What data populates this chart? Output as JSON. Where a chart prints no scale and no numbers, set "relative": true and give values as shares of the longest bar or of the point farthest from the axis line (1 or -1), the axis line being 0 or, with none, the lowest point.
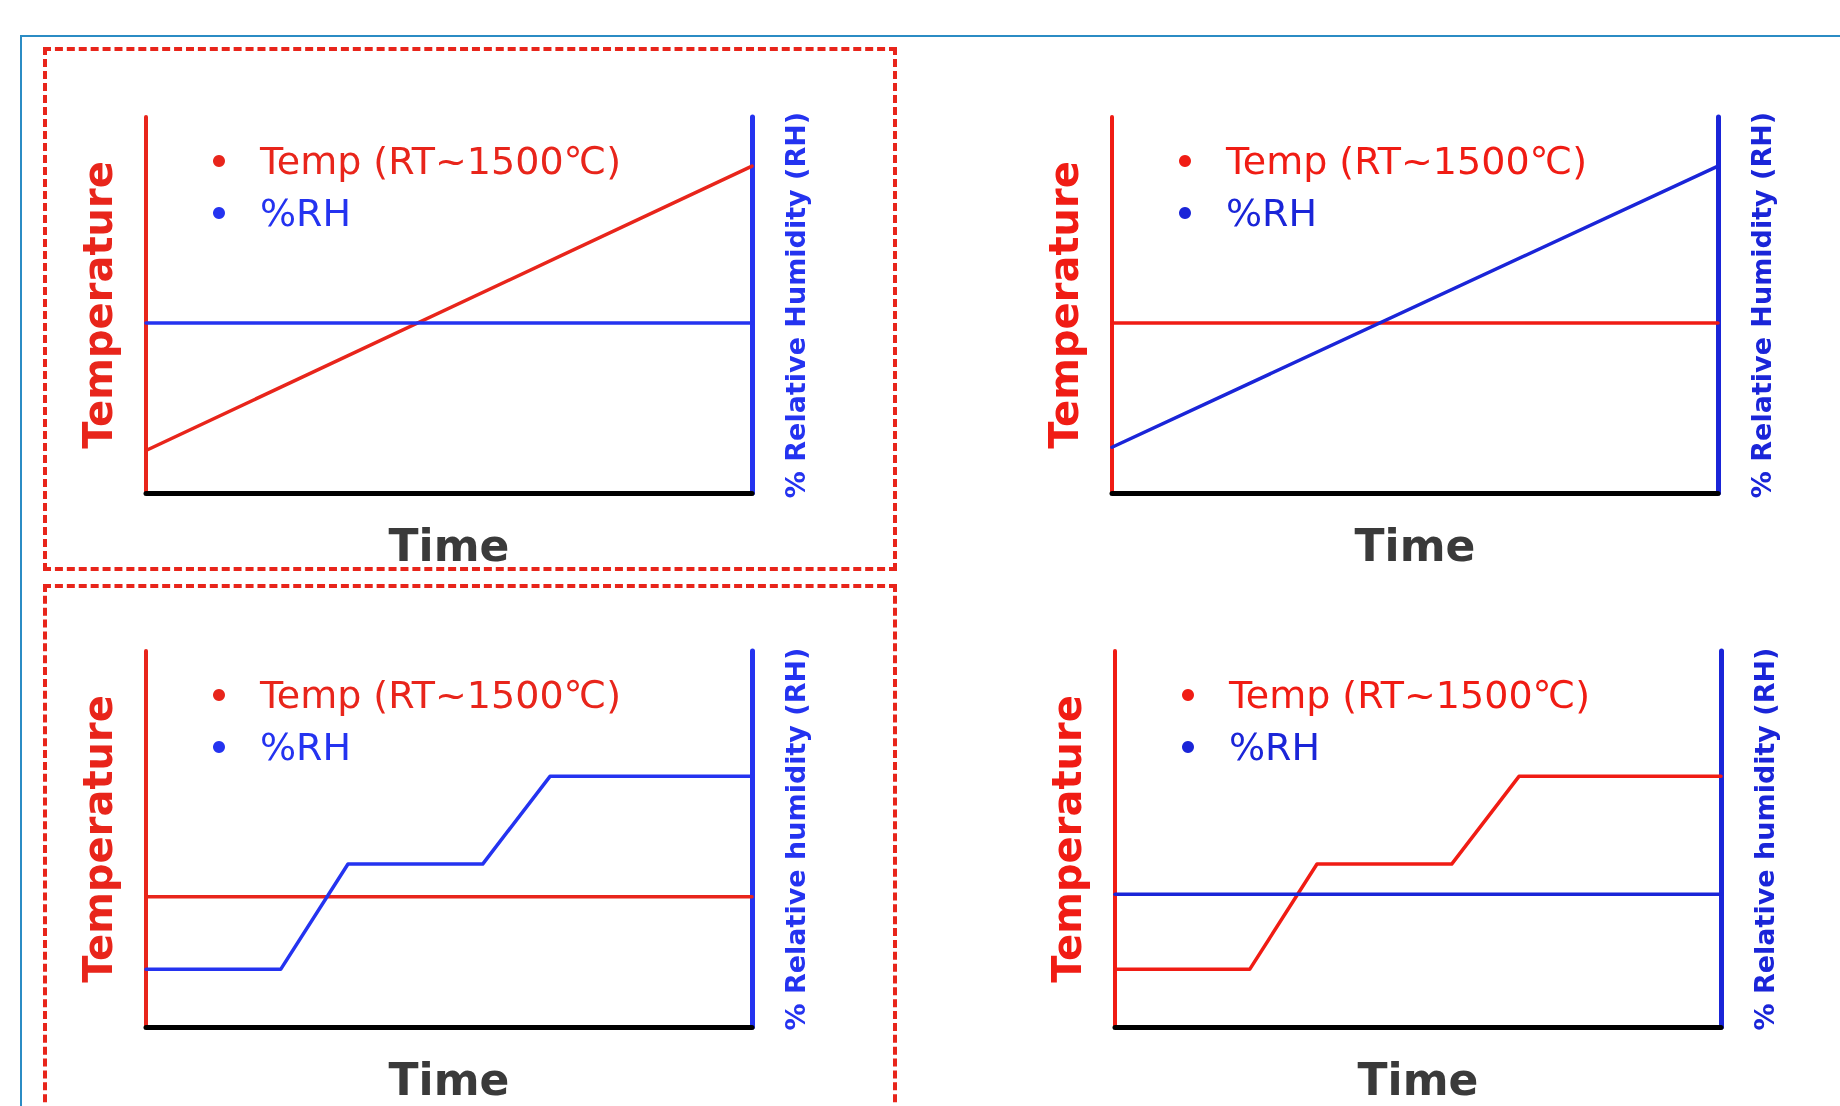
{
  "chart_data": [
    {
      "type": "line",
      "relative": true,
      "xlabel": "Time",
      "ylabel": "Temperature",
      "y2label": "% Relative Humidity (RH)",
      "categories": [
        null,
        null
      ],
      "grid": false,
      "legend": "top left",
      "marker": "none",
      "line_style": "solid",
      "series": [
        {
          "name": "Temp (RT~1500℃)",
          "color": "#e8251b",
          "values": [
            0.13,
            1
          ]
        },
        {
          "name": "%RH",
          "color": "#2433f0",
          "values": [
            0.52,
            0.52
          ]
        }
      ]
    },
    {
      "type": "line",
      "relative": true,
      "xlabel": "Time",
      "ylabel": "Temperature",
      "y2label": "% Relative Humidity (RH)",
      "categories": [
        null,
        null
      ],
      "grid": false,
      "legend": "top left",
      "marker": "none",
      "line_style": "solid",
      "series": [
        {
          "name": "Temp (RT~1500℃)",
          "color": "#f01c14",
          "values": [
            0.52,
            0.52
          ]
        },
        {
          "name": "%RH",
          "color": "#1a25d8",
          "values": [
            0.14,
            1
          ]
        }
      ]
    },
    {
      "type": "line",
      "relative": true,
      "xlabel": "Time",
      "ylabel": "Temperature",
      "y2label": "% Relative humidity (RH)",
      "categories": [
        null,
        null,
        null,
        null,
        null,
        null,
        null,
        null,
        null,
        null
      ],
      "grid": false,
      "legend": "top left",
      "marker": "none",
      "line_style": "solid",
      "series": [
        {
          "name": "Temp (RT~1500℃)",
          "color": "#e8251b",
          "values": [
            0.52,
            0.52,
            0.52,
            0.52,
            0.52,
            0.52,
            0.52,
            0.52,
            0.52,
            0.52
          ]
        },
        {
          "name": "%RH",
          "color": "#2433f0",
          "values": [
            0.23,
            0.23,
            0.23,
            0.65,
            0.65,
            0.65,
            1,
            1,
            1,
            1
          ]
        }
      ]
    },
    {
      "type": "line",
      "relative": true,
      "xlabel": "Time",
      "ylabel": "Temperature",
      "y2label": "% Relative humidity (RH)",
      "categories": [
        null,
        null,
        null,
        null,
        null,
        null,
        null,
        null,
        null,
        null
      ],
      "grid": false,
      "legend": "top left",
      "marker": "none",
      "line_style": "solid",
      "series": [
        {
          "name": "Temp (RT~1500℃)",
          "color": "#f01c14",
          "values": [
            0.23,
            0.23,
            0.23,
            0.65,
            0.65,
            0.65,
            1,
            1,
            1,
            1
          ]
        },
        {
          "name": "%RH",
          "color": "#1a25d8",
          "values": [
            0.53,
            0.53,
            0.53,
            0.53,
            0.53,
            0.53,
            0.53,
            0.53,
            0.53,
            0.53
          ]
        }
      ]
    }
  ]
}
